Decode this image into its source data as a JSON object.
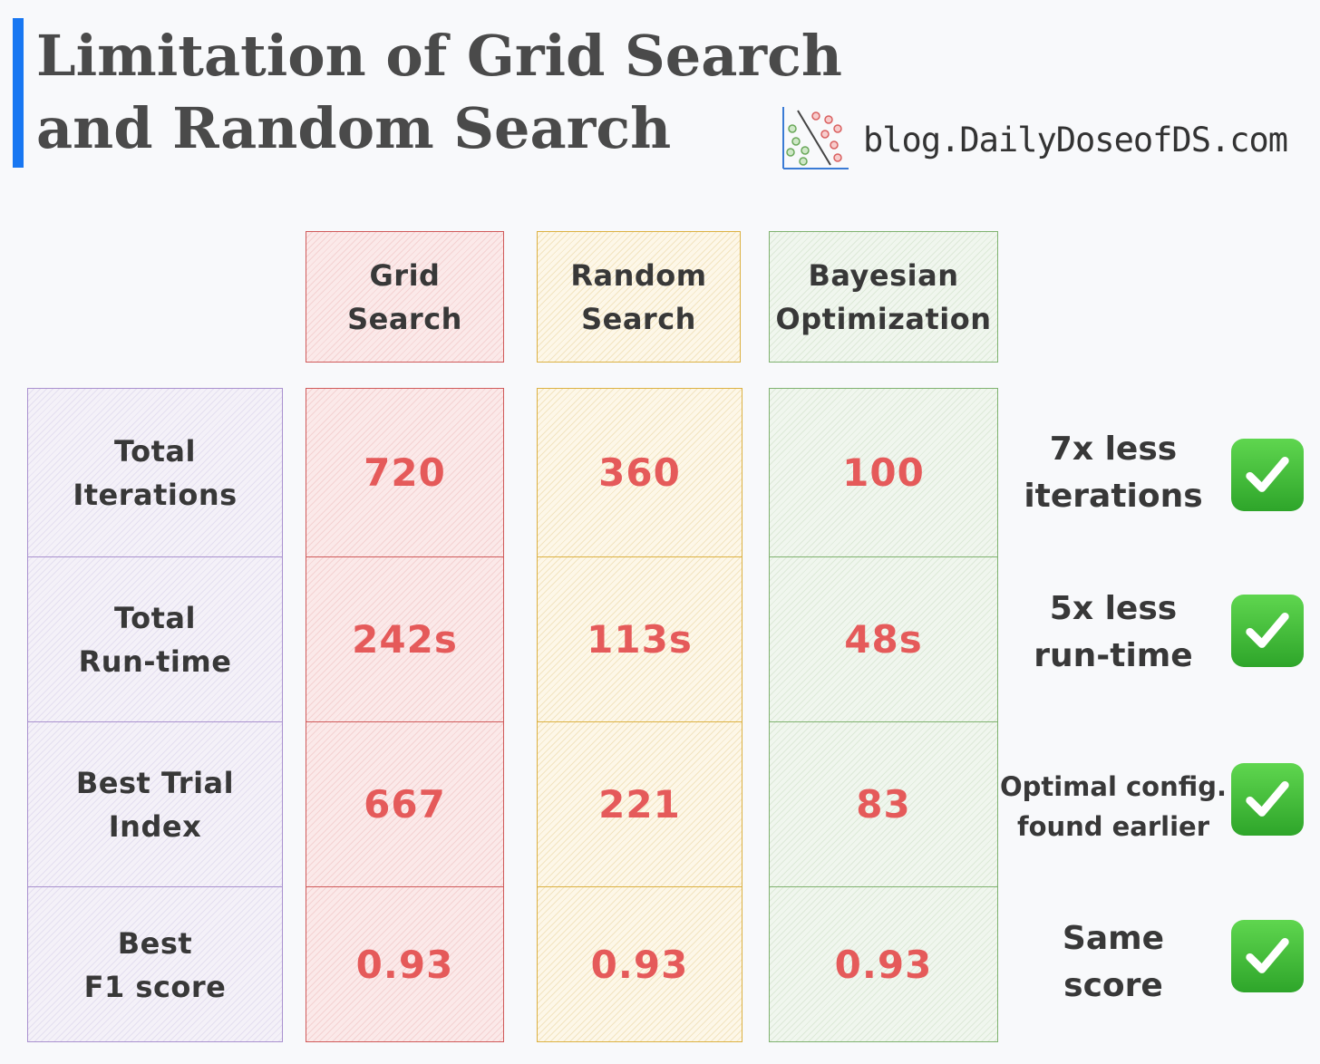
{
  "header": {
    "title_line1": "Limitation of Grid Search",
    "title_line2": "and Random Search",
    "brand": "blog.DailyDoseofDS.com",
    "logo_icon": "scatter-plot-logo-icon"
  },
  "methods": [
    {
      "label": "Grid\nSearch",
      "color": "#d05a5a"
    },
    {
      "label": "Random\nSearch",
      "color": "#dcb142"
    },
    {
      "label": "Bayesian\nOptimization",
      "color": "#7fb26f"
    }
  ],
  "metrics": [
    {
      "label": "Total\nIterations",
      "grid": "720",
      "random": "360",
      "bayes": "100",
      "note": "7x less\niterations"
    },
    {
      "label": "Total\nRun-time",
      "grid": "242s",
      "random": "113s",
      "bayes": "48s",
      "note": "5x less\nrun-time"
    },
    {
      "label": "Best Trial\nIndex",
      "grid": "667",
      "random": "221",
      "bayes": "83",
      "note": "Optimal config.\nfound earlier"
    },
    {
      "label": "Best\nF1 score",
      "grid": "0.93",
      "random": "0.93",
      "bayes": "0.93",
      "note": "Same\nscore"
    }
  ],
  "check_icon": "check-mark-button-icon",
  "colors": {
    "accent": "#1877f2",
    "value": "#e55a5a",
    "check": "#3cb935"
  }
}
